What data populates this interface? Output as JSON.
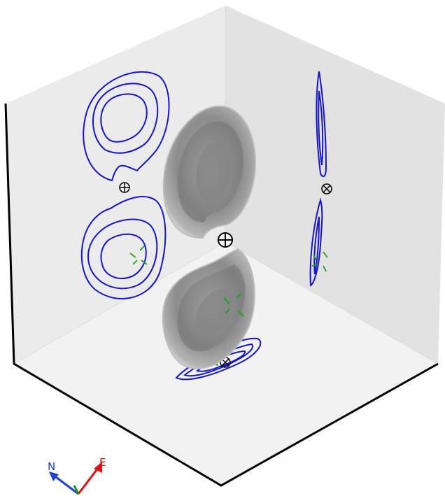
{
  "orientation": {
    "north_label": "N",
    "east_label": "E",
    "north_color": "#1f3fd8",
    "east_color": "#e01010",
    "third_axis_color": "#10a010"
  },
  "colors": {
    "contour": "#1515d0",
    "marker_green": "#1fa01f",
    "marker_black": "#000000",
    "box_edge": "#000000",
    "wall_left": "#ececec",
    "wall_right": "#e4e4e4",
    "floor": "#f2f2f2",
    "body_gray": "#8a8a8a"
  },
  "icons": {
    "center_marker": "circle-plus-icon",
    "projected_marker": "circle-cross-icon",
    "fiducial_marker": "green-cross-icon"
  }
}
